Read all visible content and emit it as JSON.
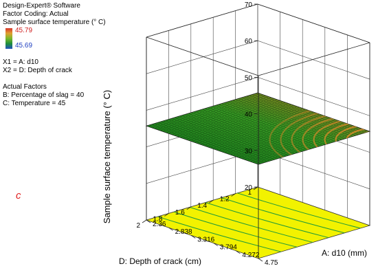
{
  "software": "Design-Expert® Software",
  "factor_coding": "Factor Coding: Actual",
  "response_label": "Sample surface temperature (° C)",
  "legend": {
    "max": "45.79",
    "min": "45.69",
    "max_color": "#d02020",
    "min_color": "#2040c0"
  },
  "x1_def": "X1 = A: d10",
  "x2_def": "X2 = D: Depth of crack",
  "actual_factors_title": "Actual Factors",
  "actual_factor_b": "B: Percentage of slag = 40",
  "actual_factor_c": "C: Temperature = 45",
  "panel_letter": "c",
  "chart_data": {
    "type": "surface",
    "title": "",
    "zlabel": "Sample surface temperature (° C)",
    "xlabel": "A: d10 (mm)",
    "ylabel": "D: Depth of crack (cm)",
    "z_ticks": [
      "20",
      "30",
      "40",
      "50",
      "60",
      "70"
    ],
    "x_ticks": [
      "2.36",
      "2.838",
      "3.316",
      "3.794",
      "4.272",
      "4.75"
    ],
    "y_ticks": [
      "1",
      "1.2",
      "1.4",
      "1.6",
      "1.8",
      "2"
    ],
    "xlim": [
      2.36,
      4.75
    ],
    "ylim": [
      1,
      2
    ],
    "zlim": [
      20,
      70
    ],
    "response_range": [
      45.69,
      45.79
    ],
    "surface_level": 45.74,
    "contour_projection": "floor",
    "floor_color": "#f2f200",
    "grid": true
  }
}
